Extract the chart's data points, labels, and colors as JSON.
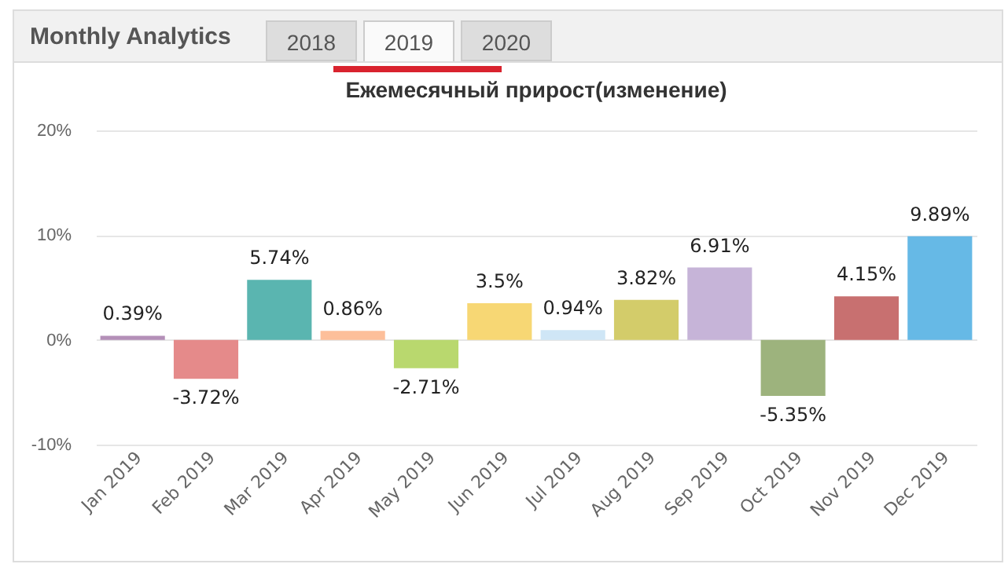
{
  "chart_data": {
    "type": "bar",
    "title": "Ежемесячный прирост(изменение)",
    "annotations": [
      "Monthly Analytics",
      "2018",
      "2019",
      "2020"
    ],
    "categories": [
      "Jan 2019",
      "Feb 2019",
      "Mar 2019",
      "Apr 2019",
      "May 2019",
      "Jun 2019",
      "Jul 2019",
      "Aug 2019",
      "Sep 2019",
      "Oct 2019",
      "Nov 2019",
      "Dec 2019"
    ],
    "values": [
      0.39,
      -3.72,
      5.74,
      0.86,
      -2.71,
      3.5,
      0.94,
      3.82,
      6.91,
      -5.35,
      4.15,
      9.89
    ],
    "value_labels": [
      "0.39%",
      "-3.72%",
      "5.74%",
      "0.86%",
      "-2.71%",
      "3.5%",
      "0.94%",
      "3.82%",
      "6.91%",
      "-5.35%",
      "4.15%",
      "9.89%"
    ],
    "colors": [
      "#b48fb8",
      "#e58a8a",
      "#5ab5b0",
      "#fdbf9a",
      "#b9d86e",
      "#f7d774",
      "#cfe6f6",
      "#d3cc6a",
      "#c6b4d8",
      "#9db37d",
      "#c87070",
      "#66b9e6"
    ],
    "ylim": [
      -10,
      20
    ],
    "yticks": [
      {
        "value": -10,
        "label": "-10%"
      },
      {
        "value": 0,
        "label": "0%"
      },
      {
        "value": 10,
        "label": "10%"
      },
      {
        "value": 20,
        "label": "20%"
      }
    ],
    "grid": true
  }
}
